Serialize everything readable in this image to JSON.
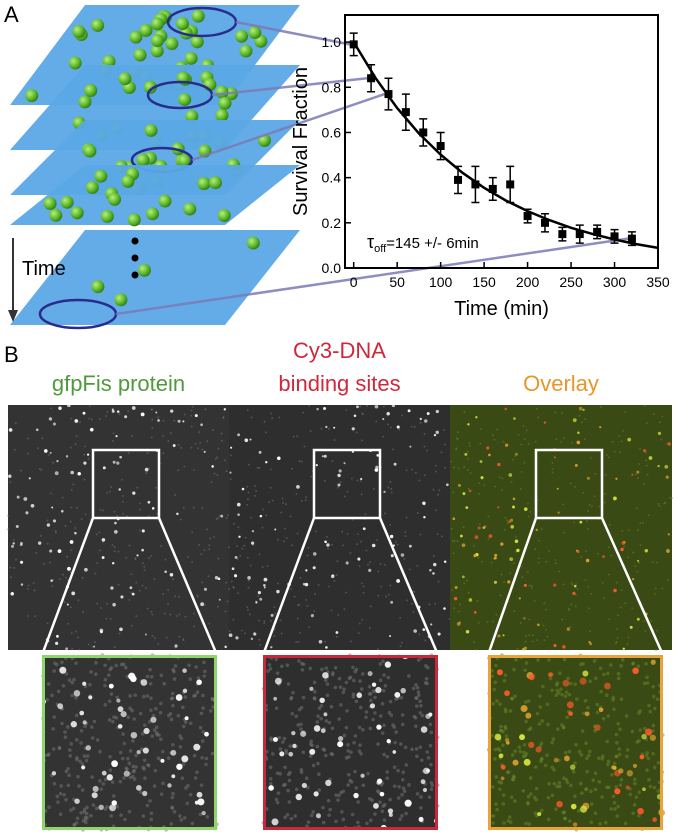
{
  "panel_a": {
    "label": "A",
    "time_label": "Time"
  },
  "chart_data": {
    "type": "scatter",
    "xlabel": "Time (min)",
    "ylabel": "Survival Fraction",
    "x": [
      0,
      20,
      40,
      60,
      80,
      100,
      120,
      140,
      160,
      180,
      200,
      220,
      240,
      260,
      280,
      300,
      320
    ],
    "values": [
      0.99,
      0.84,
      0.77,
      0.69,
      0.6,
      0.54,
      0.39,
      0.37,
      0.35,
      0.37,
      0.23,
      0.2,
      0.15,
      0.15,
      0.16,
      0.14,
      0.13
    ],
    "errors": [
      0.05,
      0.06,
      0.07,
      0.08,
      0.06,
      0.06,
      0.06,
      0.08,
      0.05,
      0.08,
      0.03,
      0.04,
      0.03,
      0.04,
      0.03,
      0.03,
      0.03
    ],
    "color": "#000000",
    "fit": {
      "x": [
        0,
        25,
        50,
        75,
        100,
        125,
        150,
        175,
        200,
        225,
        250,
        275,
        300,
        325,
        350
      ],
      "values": [
        1.0,
        0.842,
        0.708,
        0.596,
        0.502,
        0.422,
        0.355,
        0.299,
        0.252,
        0.212,
        0.178,
        0.15,
        0.126,
        0.106,
        0.089
      ]
    },
    "annotation": {
      "symbol": "τ",
      "subscript": "off",
      "text": "=145 +/- 6min"
    },
    "xlim": [
      -10,
      350
    ],
    "ylim": [
      0,
      1.12
    ],
    "xticks": [
      0,
      50,
      100,
      150,
      200,
      250,
      300,
      350
    ],
    "yticks": [
      {
        "value": 0,
        "label": "0.0"
      },
      0.2,
      0.4,
      0.6,
      0.8,
      {
        "value": 1,
        "label": "1.0"
      }
    ]
  },
  "panel_b": {
    "label": "B",
    "titles": [
      {
        "lines": [
          "gfpFis protein"
        ],
        "color": "#4f9a3c"
      },
      {
        "lines": [
          "Cy3-DNA",
          "binding sites"
        ],
        "color": "#d0283a"
      },
      {
        "lines": [
          "Overlay"
        ],
        "color": "#e8962a"
      }
    ]
  }
}
